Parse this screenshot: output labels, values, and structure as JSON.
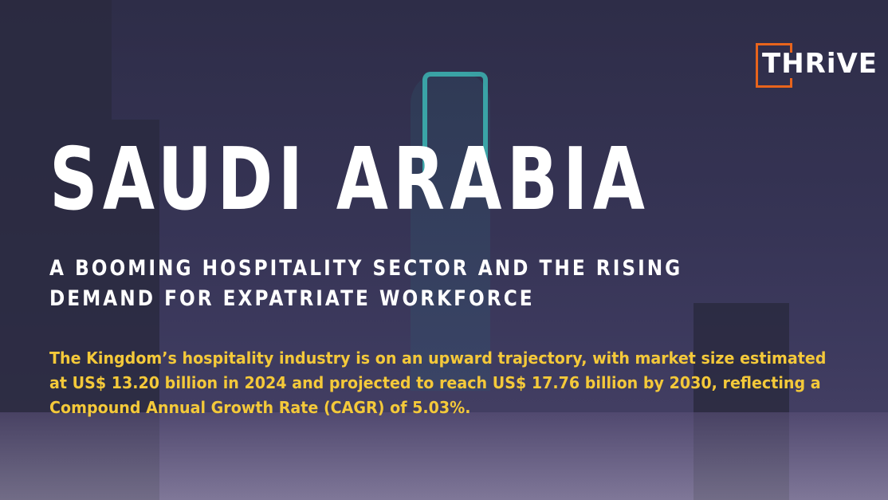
{
  "logo": {
    "text": "THRiVE",
    "accent": "#e8641c"
  },
  "title": "SAUDI ARABIA",
  "subtitle_lines": [
    "A BOOMING HOSPITALITY SECTOR AND THE RISING",
    "DEMAND FOR EXPATRIATE WORKFORCE"
  ],
  "body": "The Kingdom’s hospitality industry is on an upward trajectory, with market size estimated at US$ 13.20 billion in 2024 and projected to reach US$ 17.76 billion by 2030, reflecting a Compound Annual Growth Rate (CAGR) of 5.03%.",
  "colors": {
    "background": "#363455",
    "title": "#ffffff",
    "body": "#f4c93a"
  }
}
